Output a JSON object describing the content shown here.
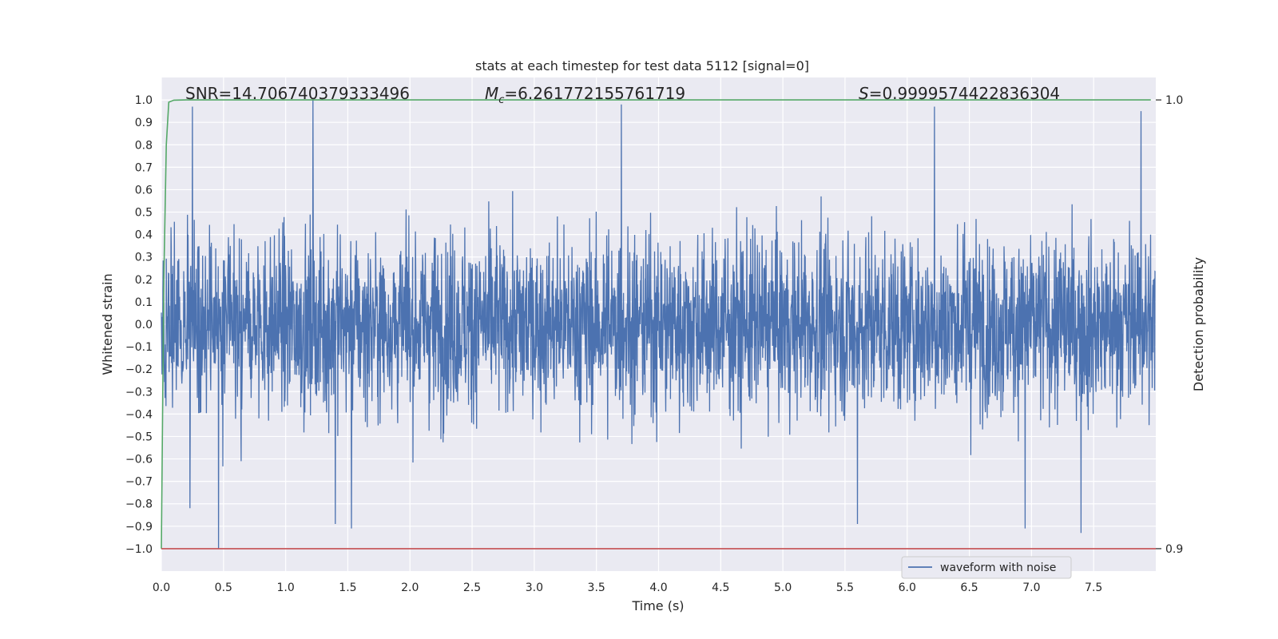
{
  "chart_data": {
    "type": "line",
    "title": "stats at each timestep for test data 5112 [signal=0]",
    "xlabel": "Time (s)",
    "ylabel": "Whitened strain",
    "ylabel_right": "Detection probability",
    "xlim": [
      0.0,
      8.0
    ],
    "ylim": [
      -1.1,
      1.1
    ],
    "ylim_right": [
      0.895,
      1.005
    ],
    "grid": true,
    "x_ticks": [
      "0.0",
      "0.5",
      "1.0",
      "1.5",
      "2.0",
      "2.5",
      "3.0",
      "3.5",
      "4.0",
      "4.5",
      "5.0",
      "5.5",
      "6.0",
      "6.5",
      "7.0",
      "7.5"
    ],
    "y_ticks": [
      "1.0",
      "0.9",
      "0.8",
      "0.7",
      "0.6",
      "0.5",
      "0.4",
      "0.3",
      "0.2",
      "0.1",
      "0.0",
      "−0.1",
      "−0.2",
      "−0.3",
      "−0.4",
      "−0.5",
      "−0.6",
      "−0.7",
      "−0.8",
      "−0.9",
      "−1.0"
    ],
    "y_right_ticks": [
      "1.0",
      "0.9"
    ],
    "annotations": {
      "snr": "SNR=14.706740379333496",
      "mc_symbol": "M",
      "mc_sub": "c",
      "mc_value": "=6.261772155761719",
      "s_symbol": "S",
      "s_value": "=0.9999574422836304"
    },
    "legend": {
      "position": "lower-right",
      "entries": [
        "waveform with noise"
      ]
    },
    "series": [
      {
        "name": "waveform with noise",
        "color": "#4c72b0",
        "description": "whitened noise, amplitude roughly within -0.6..0.6 with spikes",
        "x_range": [
          0.0,
          7.996
        ],
        "spikes": [
          {
            "x": 0.25,
            "y": 0.97
          },
          {
            "x": 1.22,
            "y": 1.0
          },
          {
            "x": 3.7,
            "y": 0.98
          },
          {
            "x": 6.22,
            "y": 0.97
          },
          {
            "x": 7.88,
            "y": 0.95
          },
          {
            "x": 0.46,
            "y": -1.0
          },
          {
            "x": 1.4,
            "y": -0.89
          },
          {
            "x": 1.53,
            "y": -0.91
          },
          {
            "x": 5.6,
            "y": -0.89
          },
          {
            "x": 7.4,
            "y": -0.93
          },
          {
            "x": 0.23,
            "y": -0.82
          },
          {
            "x": 6.95,
            "y": -0.91
          }
        ]
      },
      {
        "name": "",
        "axis": "right",
        "color": "#55a868",
        "x": [
          0.0,
          0.02,
          0.04,
          0.06,
          0.1,
          0.2,
          7.96
        ],
        "y": [
          0.9,
          0.96,
          0.99,
          0.9995,
          0.99995,
          1.0,
          1.0
        ]
      },
      {
        "name": "",
        "axis": "right",
        "color": "#c44e52",
        "x": [
          0.0,
          8.0
        ],
        "y": [
          0.9,
          0.9
        ]
      }
    ]
  }
}
